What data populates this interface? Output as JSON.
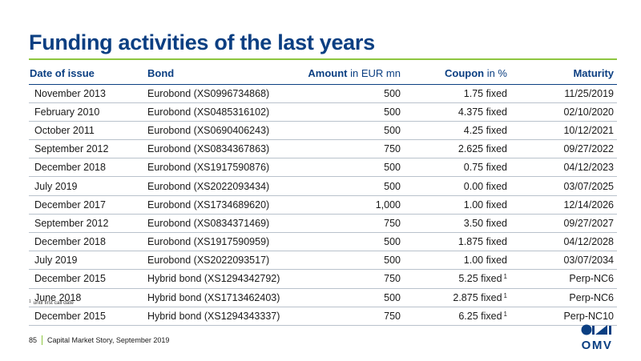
{
  "title": "Funding activities of the last years",
  "table": {
    "headers": {
      "date": "Date of issue",
      "bond": "Bond",
      "amount": "Amount",
      "amount_unit": "in EUR mn",
      "coupon": "Coupon",
      "coupon_unit": "in %",
      "maturity": "Maturity"
    },
    "rows": [
      {
        "date": "November 2013",
        "bond": "Eurobond (XS0996734868)",
        "amount": "500",
        "coupon": "1.75 fixed",
        "fn": "",
        "maturity": "11/25/2019"
      },
      {
        "date": "February 2010",
        "bond": "Eurobond (XS0485316102)",
        "amount": "500",
        "coupon": "4.375 fixed",
        "fn": "",
        "maturity": "02/10/2020"
      },
      {
        "date": "October 2011",
        "bond": "Eurobond (XS0690406243)",
        "amount": "500",
        "coupon": "4.25 fixed",
        "fn": "",
        "maturity": "10/12/2021"
      },
      {
        "date": "September 2012",
        "bond": "Eurobond (XS0834367863)",
        "amount": "750",
        "coupon": "2.625 fixed",
        "fn": "",
        "maturity": "09/27/2022"
      },
      {
        "date": "December 2018",
        "bond": "Eurobond (XS1917590876)",
        "amount": "500",
        "coupon": "0.75 fixed",
        "fn": "",
        "maturity": "04/12/2023"
      },
      {
        "date": "July 2019",
        "bond": "Eurobond (XS2022093434)",
        "amount": "500",
        "coupon": "0.00 fixed",
        "fn": "",
        "maturity": "03/07/2025"
      },
      {
        "date": "December 2017",
        "bond": "Eurobond (XS1734689620)",
        "amount": "1,000",
        "coupon": "1.00 fixed",
        "fn": "",
        "maturity": "12/14/2026"
      },
      {
        "date": "September 2012",
        "bond": "Eurobond (XS0834371469)",
        "amount": "750",
        "coupon": "3.50 fixed",
        "fn": "",
        "maturity": "09/27/2027"
      },
      {
        "date": "December 2018",
        "bond": "Eurobond (XS1917590959)",
        "amount": "500",
        "coupon": "1.875 fixed",
        "fn": "",
        "maturity": "04/12/2028"
      },
      {
        "date": "July 2019",
        "bond": "Eurobond (XS2022093517)",
        "amount": "500",
        "coupon": "1.00 fixed",
        "fn": "",
        "maturity": "03/07/2034"
      },
      {
        "date": "December 2015",
        "bond": "Hybrid bond (XS1294342792)",
        "amount": "750",
        "coupon": "5.25 fixed",
        "fn": "1",
        "maturity": "Perp-NC6"
      },
      {
        "date": "June 2018",
        "bond": "Hybrid bond (XS1713462403)",
        "amount": "500",
        "coupon": "2.875 fixed",
        "fn": "1",
        "maturity": "Perp-NC6"
      },
      {
        "date": "December 2015",
        "bond": "Hybrid bond (XS1294343337)",
        "amount": "750",
        "coupon": "6.25 fixed",
        "fn": "1",
        "maturity": "Perp-NC10"
      }
    ]
  },
  "footnote": {
    "marker": "1",
    "text": "until first call date"
  },
  "footer": {
    "page": "85",
    "text": "Capital Market Story, September 2019"
  },
  "logo": {
    "text": "OMV",
    "color": "#0b3f82"
  },
  "colors": {
    "accent_blue": "#0b3f82",
    "accent_green": "#8dc63f"
  }
}
